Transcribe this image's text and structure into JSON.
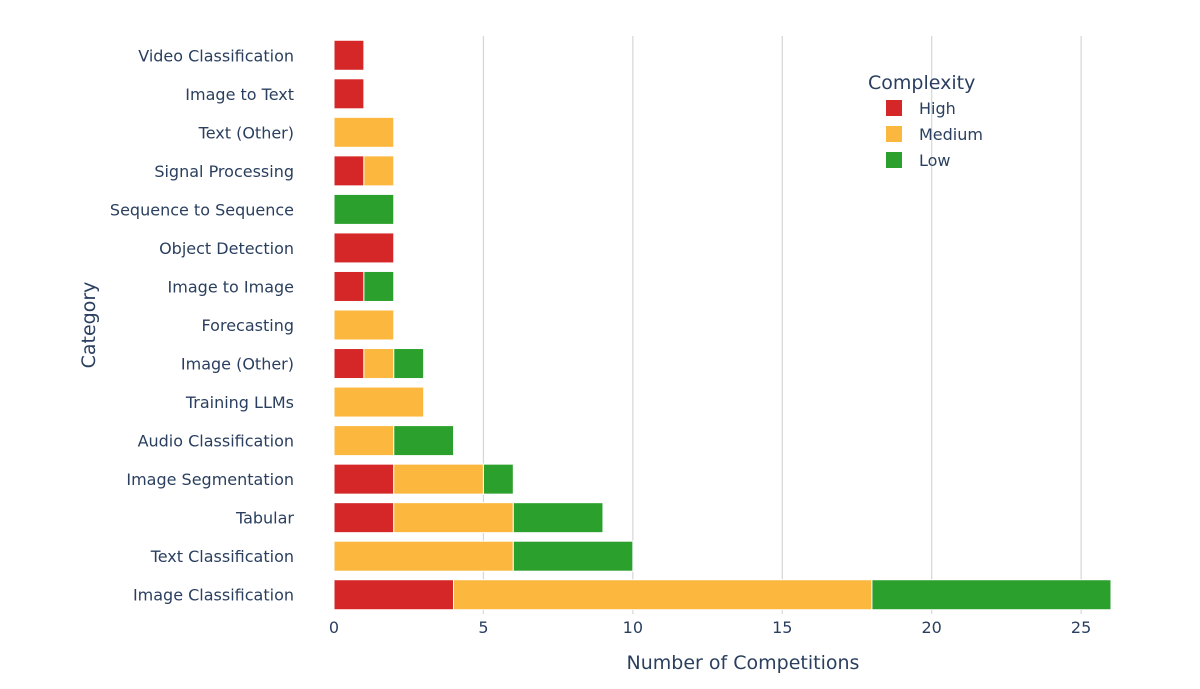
{
  "chart_data": {
    "type": "bar",
    "orientation": "horizontal",
    "barmode": "stack",
    "xlabel": "Number of Competitions",
    "ylabel": "Category",
    "xlim": [
      0,
      26
    ],
    "xticks": [
      0,
      5,
      10,
      15,
      20,
      25
    ],
    "grid": true,
    "legend": {
      "title": "Complexity",
      "placement": "top-right"
    },
    "categories": [
      "Image Classification",
      "Text Classification",
      "Tabular",
      "Image Segmentation",
      "Audio Classification",
      "Training LLMs",
      "Image (Other)",
      "Forecasting",
      "Image to Image",
      "Object Detection",
      "Sequence to Sequence",
      "Signal Processing",
      "Text (Other)",
      "Image to Text",
      "Video Classification"
    ],
    "series": [
      {
        "name": "High",
        "color": "#d62728",
        "values": [
          4,
          0,
          2,
          2,
          0,
          0,
          1,
          0,
          1,
          2,
          0,
          1,
          0,
          1,
          1
        ]
      },
      {
        "name": "Medium",
        "color": "#fbb73e",
        "values": [
          14,
          6,
          4,
          3,
          2,
          3,
          1,
          2,
          0,
          0,
          0,
          1,
          2,
          0,
          0
        ]
      },
      {
        "name": "Low",
        "color": "#2ca02c",
        "values": [
          8,
          4,
          3,
          1,
          2,
          0,
          1,
          0,
          1,
          0,
          2,
          0,
          0,
          0,
          0
        ]
      }
    ]
  }
}
